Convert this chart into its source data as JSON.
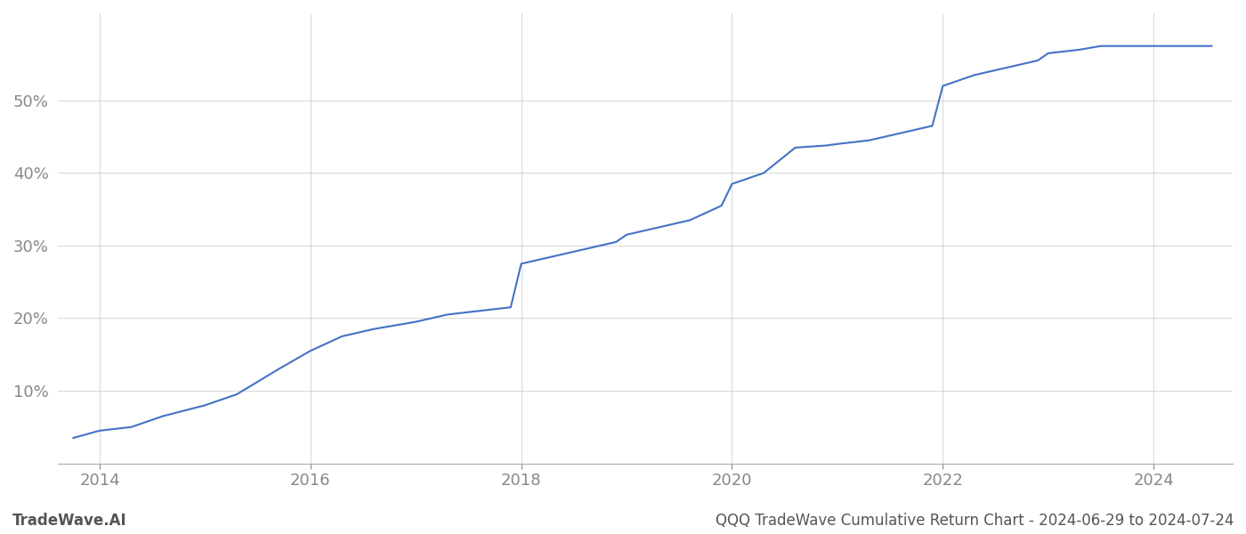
{
  "title": "",
  "bottom_left_label": "TradeWave.AI",
  "bottom_right_label": "QQQ TradeWave Cumulative Return Chart - 2024-06-29 to 2024-07-24",
  "line_color": "#4472c4",
  "line_width": 1.5,
  "background_color": "#ffffff",
  "grid_color": "#cccccc",
  "tick_label_color": "#888888",
  "bottom_label_color": "#555555",
  "x_years": [
    2013.75,
    2014.0,
    2014.3,
    2014.6,
    2015.0,
    2015.3,
    2015.7,
    2016.0,
    2016.3,
    2016.6,
    2017.0,
    2017.3,
    2017.6,
    2017.9,
    2018.0,
    2018.3,
    2018.6,
    2018.9,
    2019.0,
    2019.3,
    2019.6,
    2019.9,
    2020.0,
    2020.3,
    2020.6,
    2020.9,
    2021.0,
    2021.3,
    2021.6,
    2021.9,
    2022.0,
    2022.3,
    2022.6,
    2022.9,
    2023.0,
    2023.3,
    2023.5,
    2024.0,
    2024.55
  ],
  "y_values": [
    3.5,
    4.5,
    5.0,
    6.5,
    8.0,
    9.5,
    13.0,
    15.5,
    17.5,
    18.5,
    19.5,
    20.5,
    21.0,
    21.5,
    27.5,
    28.5,
    29.5,
    30.5,
    31.5,
    32.5,
    33.5,
    35.5,
    38.5,
    40.0,
    43.5,
    43.8,
    44.0,
    44.5,
    45.5,
    46.5,
    52.0,
    53.5,
    54.5,
    55.5,
    56.5,
    57.0,
    57.5,
    57.5,
    57.5
  ],
  "xlim": [
    2013.6,
    2024.75
  ],
  "ylim": [
    0,
    62
  ],
  "yticks": [
    10,
    20,
    30,
    40,
    50
  ],
  "xticks": [
    2014,
    2016,
    2018,
    2020,
    2022,
    2024
  ],
  "figsize": [
    14.0,
    6.0
  ],
  "dpi": 100
}
